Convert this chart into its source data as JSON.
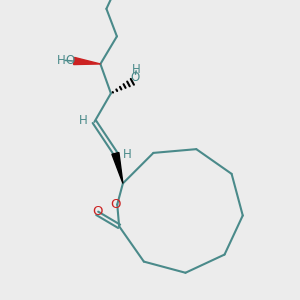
{
  "bg_color": "#ececec",
  "bond_color": "#4a8a8a",
  "bond_width": 1.5,
  "o_color": "#cc2222",
  "label_color": "#4a8a8a",
  "fig_width": 3.0,
  "fig_height": 3.0,
  "dpi": 100,
  "xlim": [
    0,
    10
  ],
  "ylim": [
    0,
    10
  ]
}
